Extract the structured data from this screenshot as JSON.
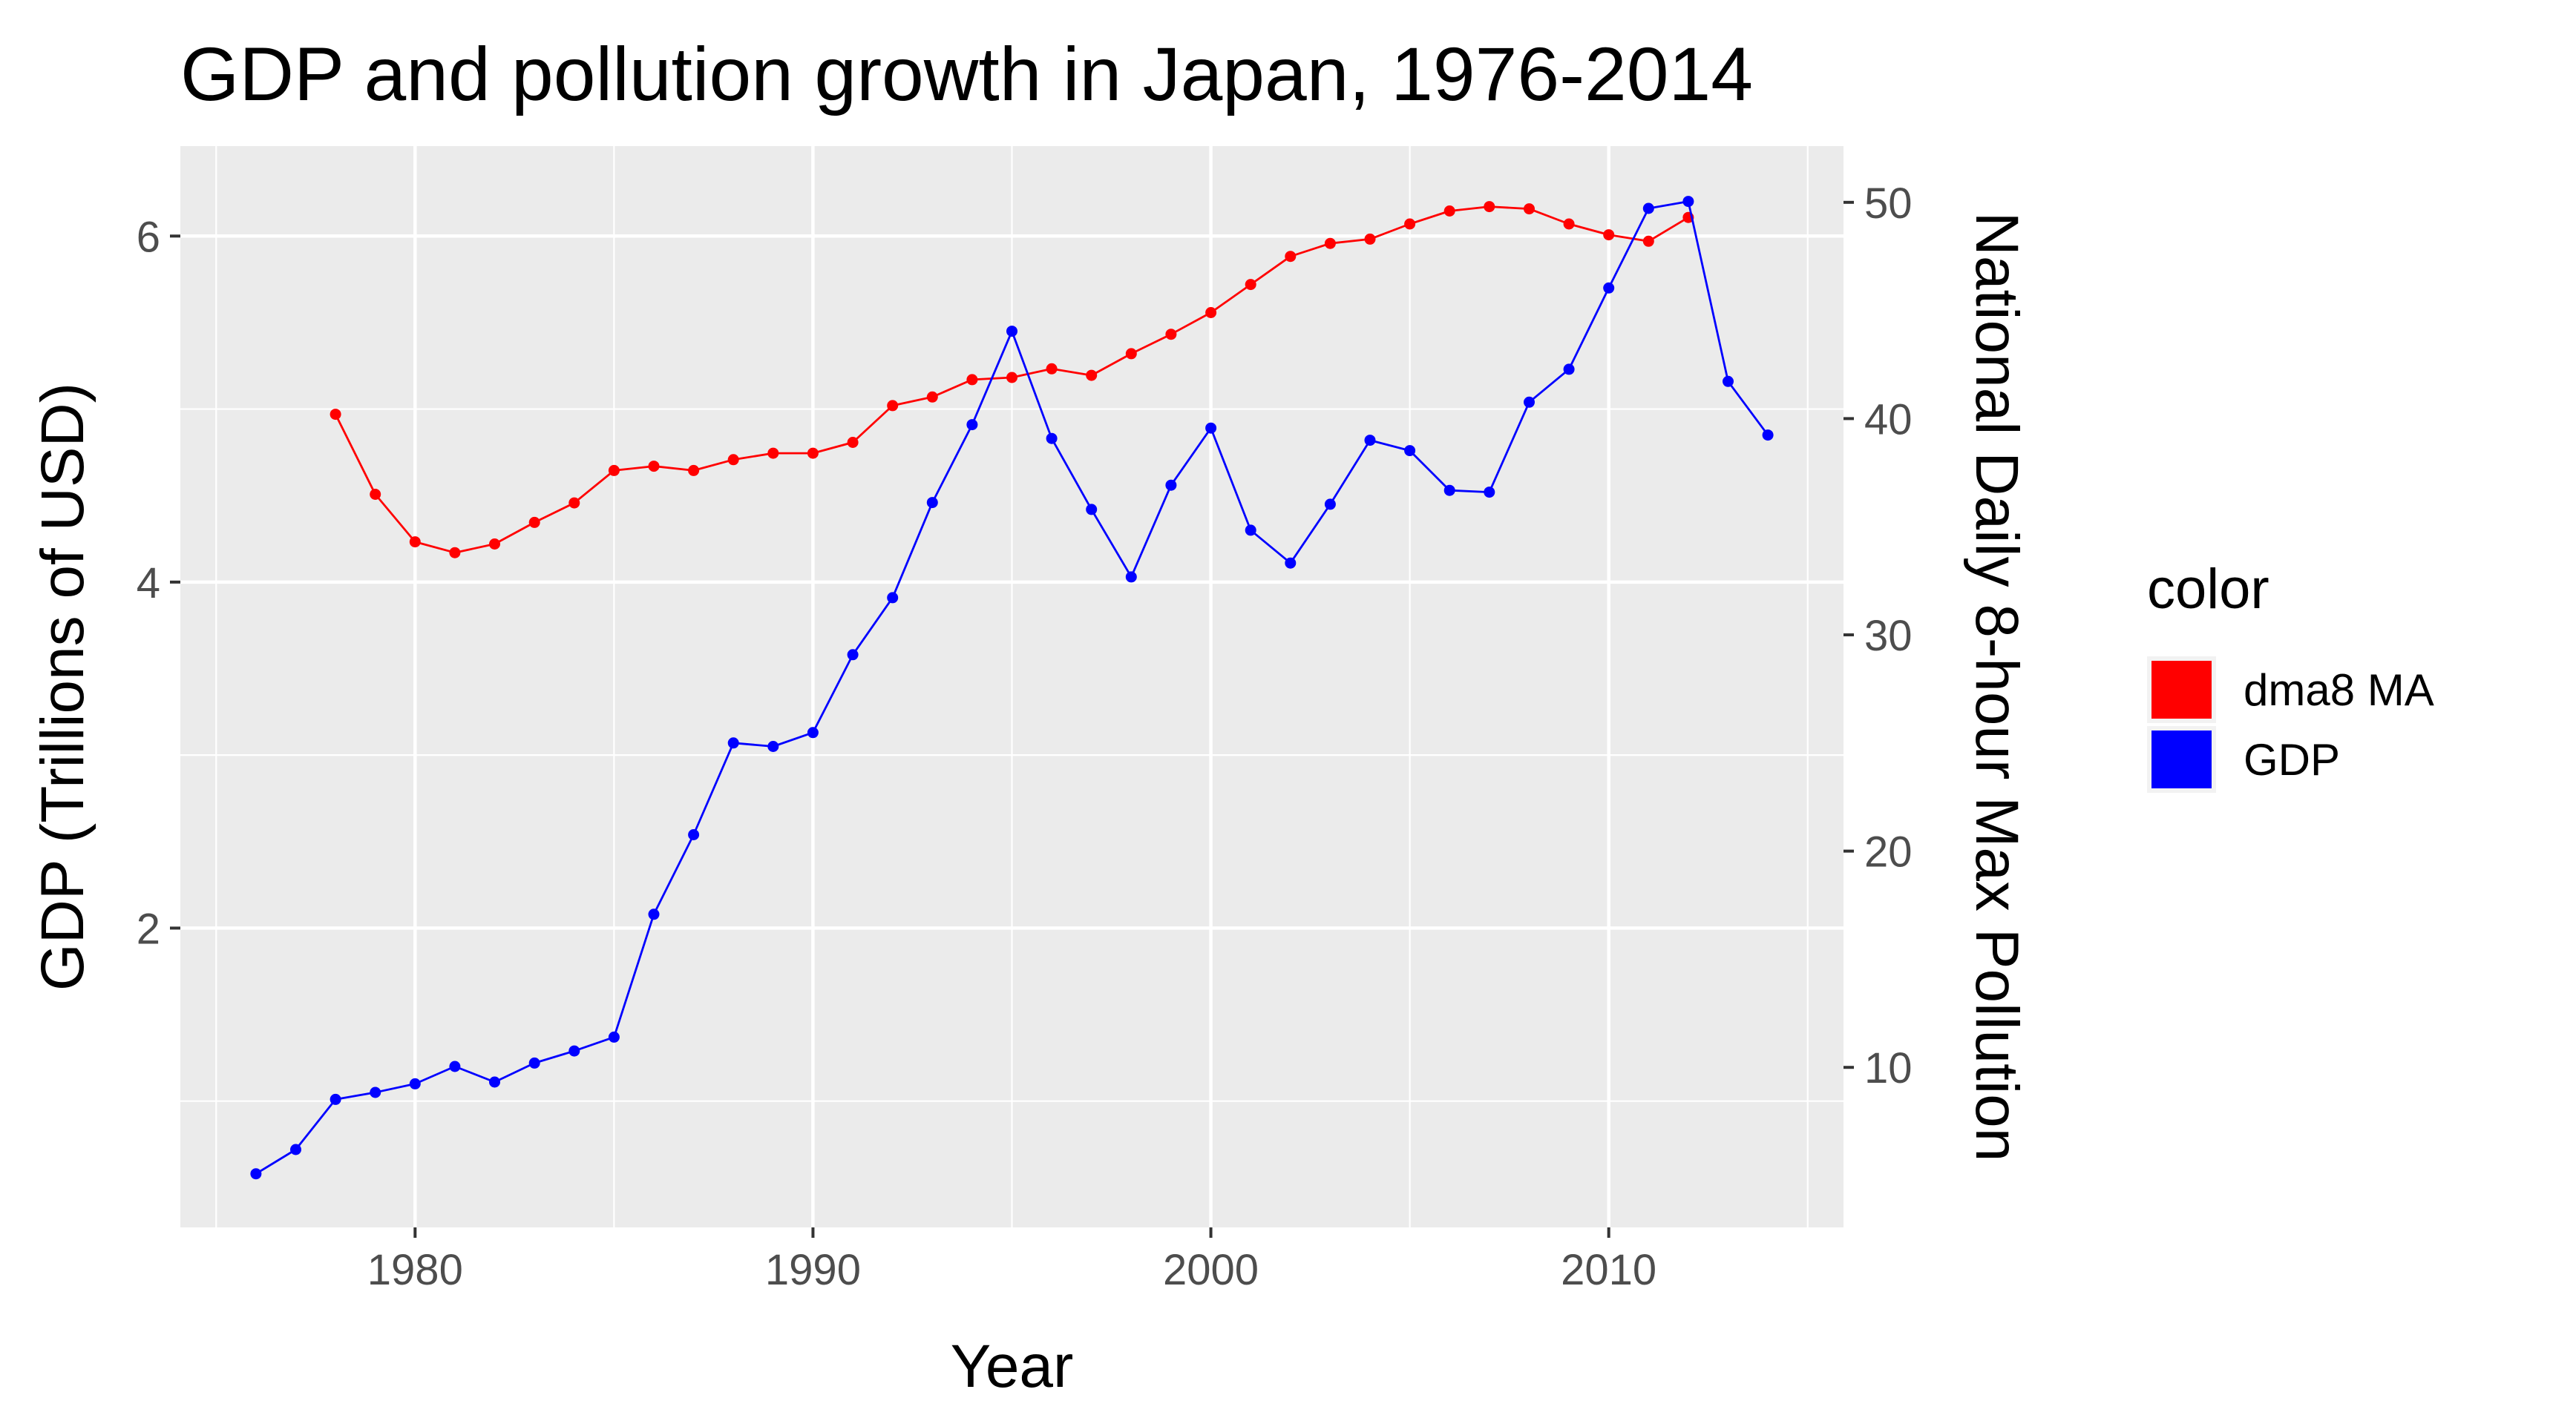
{
  "chart_data": {
    "type": "line",
    "title": "GDP and pollution growth in Japan, 1976-2014",
    "xlabel": "Year",
    "ylabel": "GDP (Trillions of USD)",
    "y2label": "National Daily 8-hour Max Pollution",
    "xlim": [
      1974.1,
      2015.9
    ],
    "ylim": [
      0.27,
      6.52
    ],
    "y2lim": [
      2.6,
      52.6
    ],
    "x_ticks": [
      1980,
      1990,
      2000,
      2010
    ],
    "y_ticks": [
      2,
      4,
      6
    ],
    "y2_ticks": [
      10,
      20,
      30,
      40,
      50
    ],
    "grid": true,
    "legend": {
      "title": "color",
      "position": "right",
      "entries": [
        {
          "label": "dma8 MA",
          "color": "#ff0000"
        },
        {
          "label": "GDP",
          "color": "#0000ff"
        }
      ]
    },
    "series": [
      {
        "name": "dma8 MA",
        "axis": "right",
        "color": "#ff0000",
        "x": [
          1978,
          1979,
          1980,
          1981,
          1982,
          1983,
          1984,
          1985,
          1986,
          1987,
          1988,
          1989,
          1990,
          1991,
          1992,
          1993,
          1994,
          1995,
          1996,
          1997,
          1998,
          1999,
          2000,
          2001,
          2002,
          2003,
          2004,
          2005,
          2006,
          2007,
          2008,
          2009,
          2010,
          2011,
          2012
        ],
        "values": [
          40.2,
          36.5,
          34.3,
          33.8,
          34.2,
          35.2,
          36.1,
          37.6,
          37.8,
          37.6,
          38.1,
          38.4,
          38.4,
          38.9,
          40.6,
          41.0,
          41.8,
          41.9,
          42.3,
          42.0,
          43.0,
          43.9,
          44.9,
          46.2,
          47.5,
          48.1,
          48.3,
          49.0,
          49.6,
          49.8,
          49.7,
          49.0,
          48.5,
          48.2,
          49.3
        ]
      },
      {
        "name": "GDP",
        "axis": "left",
        "color": "#0000ff",
        "x": [
          1976,
          1977,
          1978,
          1979,
          1980,
          1981,
          1982,
          1983,
          1984,
          1985,
          1986,
          1987,
          1988,
          1989,
          1990,
          1991,
          1992,
          1993,
          1994,
          1995,
          1996,
          1997,
          1998,
          1999,
          2000,
          2001,
          2002,
          2003,
          2004,
          2005,
          2006,
          2007,
          2008,
          2009,
          2010,
          2011,
          2012,
          2013,
          2014
        ],
        "values": [
          0.58,
          0.72,
          1.01,
          1.05,
          1.1,
          1.2,
          1.11,
          1.22,
          1.29,
          1.37,
          2.08,
          2.54,
          3.07,
          3.05,
          3.13,
          3.58,
          3.91,
          4.46,
          4.91,
          5.45,
          4.83,
          4.42,
          4.03,
          4.56,
          4.89,
          4.3,
          4.11,
          4.45,
          4.82,
          4.76,
          4.53,
          4.52,
          5.04,
          5.23,
          5.7,
          6.16,
          6.2,
          5.16,
          4.85
        ]
      }
    ]
  }
}
